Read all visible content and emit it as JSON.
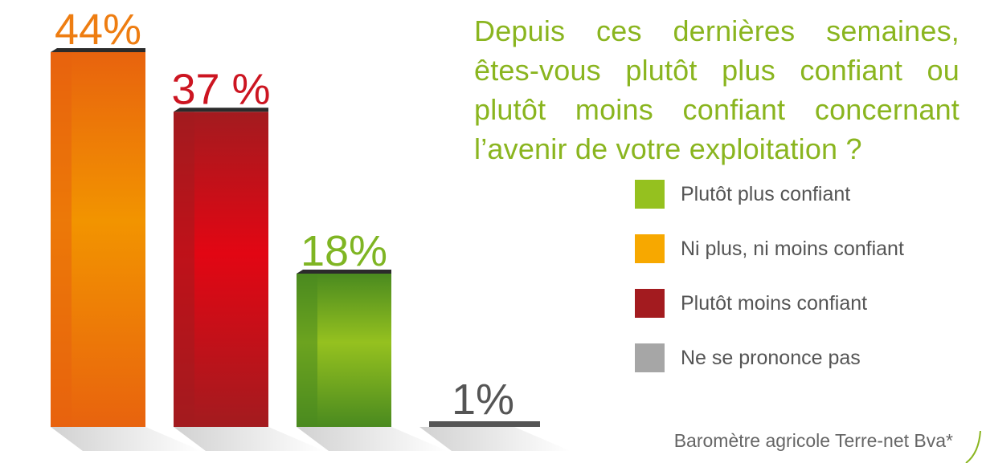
{
  "chart_data": {
    "type": "bar",
    "title": "Depuis ces dernières semaines, êtes-vous plutôt plus confiant ou plutôt moins confiant concernant l’avenir de votre exploitation ?",
    "source": "Baromètre agricole Terre-net Bva*",
    "ylim": [
      0,
      44
    ],
    "bars": [
      {
        "name": "Ni plus, ni moins confiant",
        "value": 44,
        "label": "44%",
        "color": "#f29400",
        "dark": "#e8630e",
        "labelColor": "#ee7d11"
      },
      {
        "name": "Plutôt moins confiant",
        "value": 37,
        "label": "37 %",
        "color": "#e20613",
        "dark": "#a31b1f",
        "labelColor": "#cc1521"
      },
      {
        "name": "Plutôt plus confiant",
        "value": 18,
        "label": "18%",
        "color": "#95c11f",
        "dark": "#4a8a1f",
        "labelColor": "#7fb523"
      },
      {
        "name": "Ne se prononce pas",
        "value": 1,
        "label": "1%",
        "color": "#8c8c8c",
        "dark": "#555555",
        "labelColor": "#555555"
      }
    ],
    "legend": [
      {
        "label": "Plutôt plus confiant",
        "color": "#95c11f"
      },
      {
        "label": "Ni plus, ni moins confiant",
        "color": "#f7a800"
      },
      {
        "label": "Plutôt moins confiant",
        "color": "#a31b1f"
      },
      {
        "label": "Ne se prononce pas",
        "color": "#a6a6a6"
      }
    ],
    "legend_position": "right",
    "grid": false
  }
}
